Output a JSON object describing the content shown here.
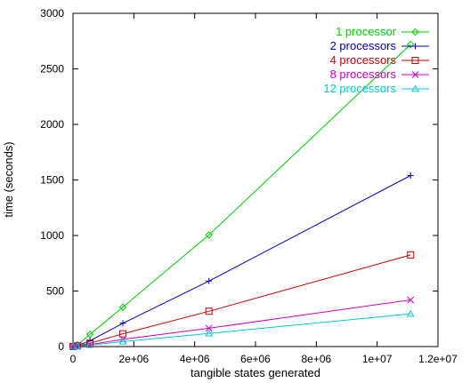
{
  "chart_data": {
    "type": "line",
    "title": "",
    "xlabel": "tangible states generated",
    "ylabel": "time (seconds)",
    "xlim": [
      0,
      12000000
    ],
    "ylim": [
      0,
      3000
    ],
    "x_ticks": [
      0,
      2000000,
      4000000,
      6000000,
      8000000,
      10000000,
      12000000
    ],
    "x_tick_labels": [
      "0",
      "2e+06",
      "4e+06",
      "6e+06",
      "8e+06",
      "1e+07",
      "1.2e+07"
    ],
    "y_ticks": [
      0,
      500,
      1000,
      1500,
      2000,
      2500,
      3000
    ],
    "y_tick_labels": [
      "0",
      "500",
      "1000",
      "1500",
      "2000",
      "2500",
      "3000"
    ],
    "grid": false,
    "legend_position": "top-right",
    "x": [
      0,
      150000,
      560000,
      1640000,
      4470000,
      11100000
    ],
    "series": [
      {
        "name": "1 processor",
        "color": "#00cc00",
        "marker": "diamond",
        "values": [
          0,
          16,
          110,
          355,
          1005,
          2720
        ]
      },
      {
        "name": "2 processors",
        "color": "#0000bb",
        "marker": "plus",
        "values": [
          0,
          10,
          52,
          210,
          590,
          1540
        ]
      },
      {
        "name": "4 processors",
        "color": "#cc0000",
        "marker": "square",
        "values": [
          0,
          6,
          30,
          115,
          318,
          825
        ]
      },
      {
        "name": "8 processors",
        "color": "#cc00cc",
        "marker": "cross",
        "values": [
          0,
          4,
          18,
          65,
          165,
          420
        ]
      },
      {
        "name": "12 processors",
        "color": "#00cccc",
        "marker": "triangle",
        "values": [
          0,
          3,
          14,
          45,
          118,
          295
        ]
      }
    ]
  }
}
